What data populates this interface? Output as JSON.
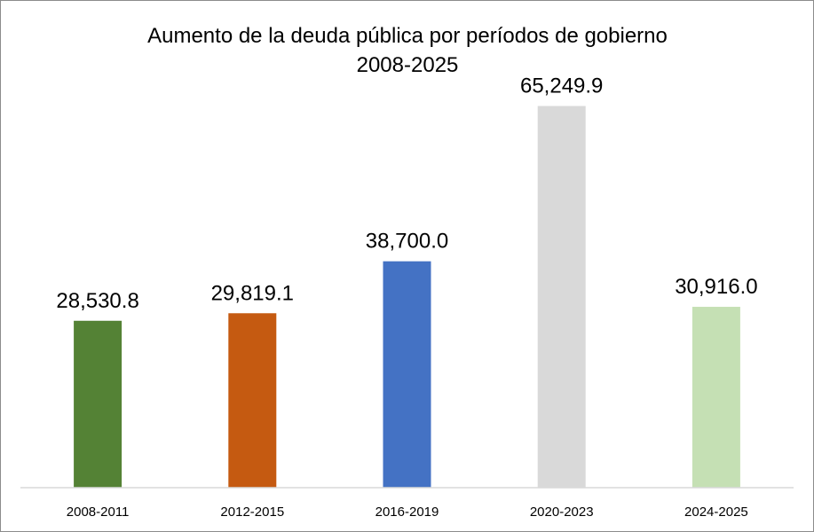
{
  "chart_data": {
    "type": "bar",
    "title": "Aumento de la deuda pública por períodos de gobierno",
    "subtitle": "2008-2025",
    "xlabel": "",
    "ylabel": "",
    "categories": [
      "2008-2011",
      "2012-2015",
      "2016-2019",
      "2020-2023",
      "2024-2025"
    ],
    "values": [
      28530.8,
      29819.1,
      38700.0,
      65249.9,
      30916.0
    ],
    "data_labels": [
      "28,530.8",
      "29,819.1",
      "38,700.0",
      "65,249.9",
      "30,916.0"
    ],
    "colors": [
      "#548235",
      "#c55a11",
      "#4472c4",
      "#d9d9d9",
      "#c5e0b4"
    ],
    "ylim": [
      0,
      72000
    ],
    "grid": false,
    "legend": "none"
  }
}
